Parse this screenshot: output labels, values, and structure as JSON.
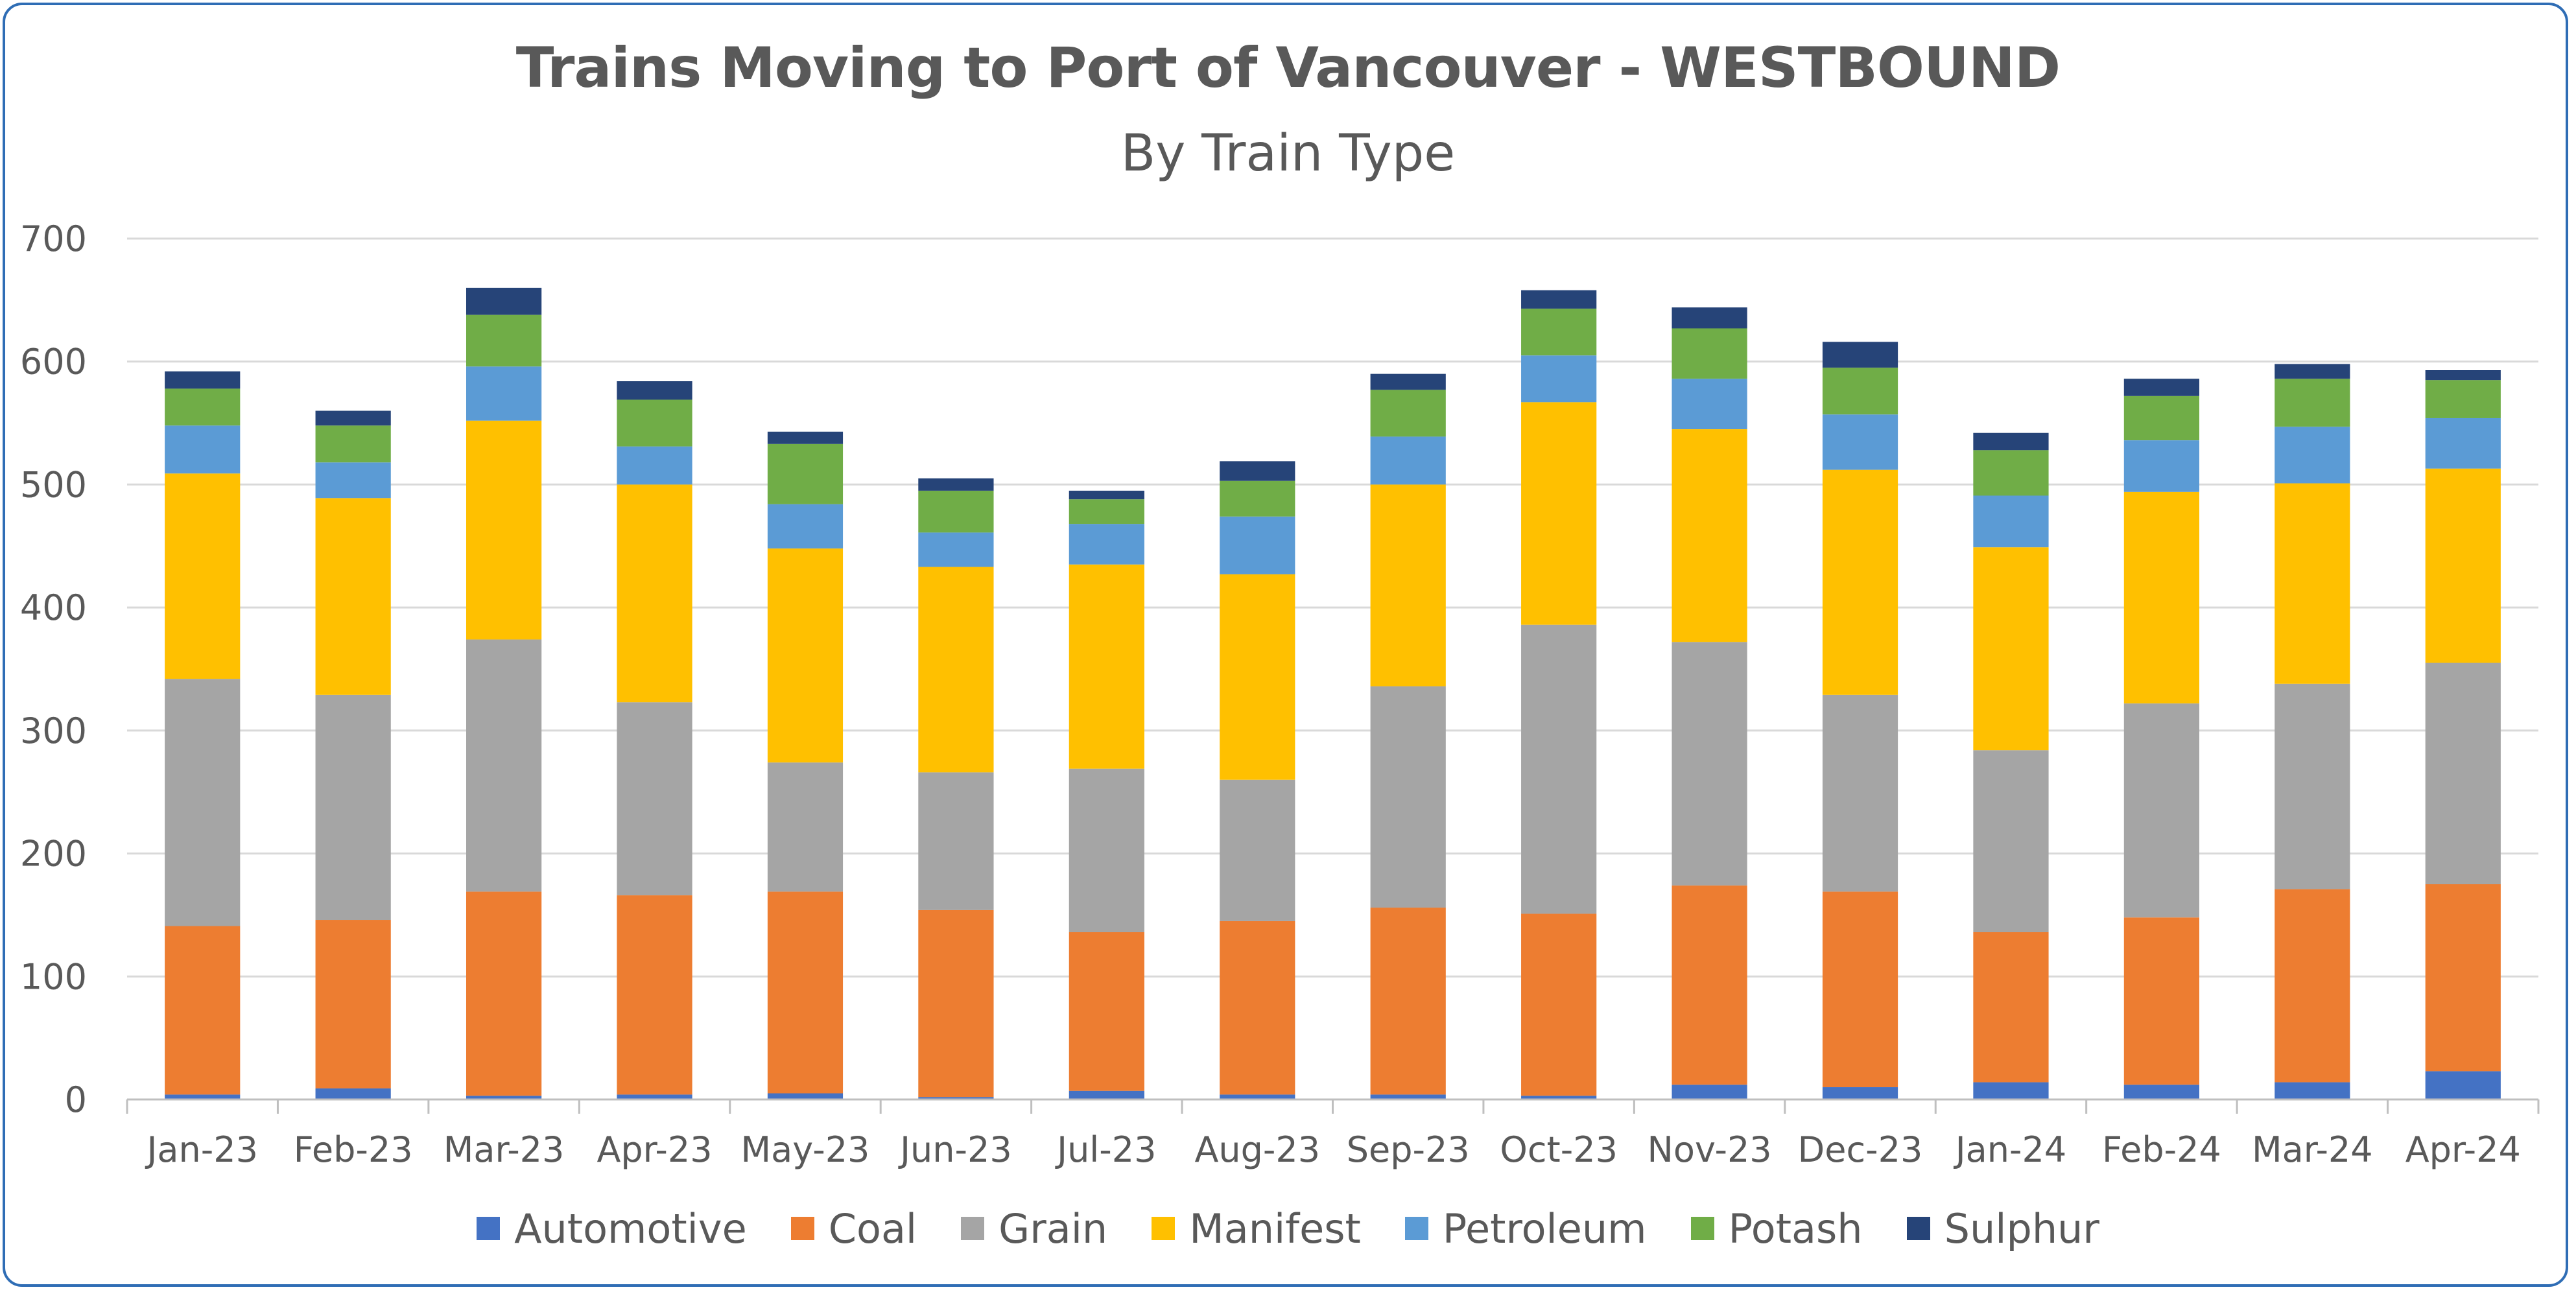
{
  "chart_data": {
    "type": "bar",
    "stacked": true,
    "title": "Trains Moving to Port of Vancouver - WESTBOUND",
    "subtitle": "By Train Type",
    "xlabel": "",
    "ylabel": "",
    "ylim": [
      0,
      700
    ],
    "yticks": [
      0,
      100,
      200,
      300,
      400,
      500,
      600,
      700
    ],
    "grid": true,
    "legend_position": "bottom",
    "categories": [
      "Jan-23",
      "Feb-23",
      "Mar-23",
      "Apr-23",
      "May-23",
      "Jun-23",
      "Jul-23",
      "Aug-23",
      "Sep-23",
      "Oct-23",
      "Nov-23",
      "Dec-23",
      "Jan-24",
      "Feb-24",
      "Mar-24",
      "Apr-24"
    ],
    "series": [
      {
        "name": "Automotive",
        "color": "#4472c4",
        "values": [
          4,
          9,
          3,
          4,
          5,
          2,
          7,
          4,
          4,
          3,
          12,
          10,
          14,
          12,
          14,
          23
        ]
      },
      {
        "name": "Coal",
        "color": "#ed7d31",
        "values": [
          137,
          137,
          166,
          162,
          164,
          152,
          129,
          141,
          152,
          148,
          162,
          159,
          122,
          136,
          157,
          152
        ]
      },
      {
        "name": "Grain",
        "color": "#a5a5a5",
        "values": [
          201,
          183,
          205,
          157,
          105,
          112,
          133,
          115,
          180,
          235,
          198,
          160,
          148,
          174,
          167,
          180
        ]
      },
      {
        "name": "Manifest",
        "color": "#ffc000",
        "values": [
          167,
          160,
          178,
          177,
          174,
          167,
          166,
          167,
          164,
          181,
          173,
          183,
          165,
          172,
          163,
          158
        ]
      },
      {
        "name": "Petroleum",
        "color": "#5b9bd5",
        "values": [
          39,
          29,
          44,
          31,
          36,
          28,
          33,
          47,
          39,
          38,
          41,
          45,
          42,
          42,
          46,
          41
        ]
      },
      {
        "name": "Potash",
        "color": "#70ad47",
        "values": [
          30,
          30,
          42,
          38,
          49,
          34,
          20,
          29,
          38,
          38,
          41,
          38,
          37,
          36,
          39,
          31
        ]
      },
      {
        "name": "Sulphur",
        "color": "#264478",
        "values": [
          14,
          12,
          22,
          15,
          10,
          10,
          7,
          16,
          13,
          15,
          17,
          21,
          14,
          14,
          12,
          8
        ]
      }
    ]
  }
}
